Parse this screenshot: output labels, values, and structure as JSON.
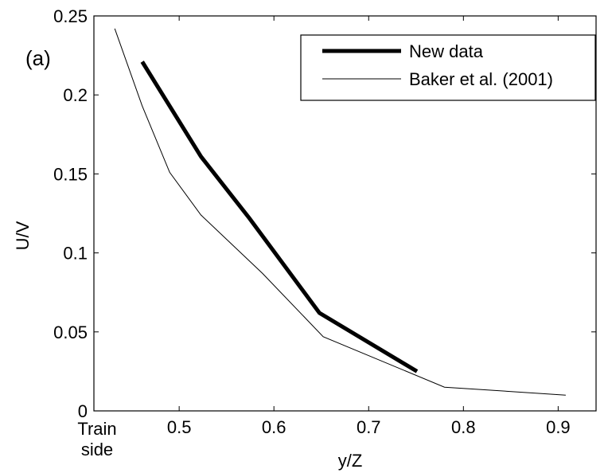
{
  "chart_data": {
    "type": "line",
    "title": "",
    "xlabel": "y/Z",
    "ylabel": "U/V",
    "xlim": [
      0.41,
      0.94
    ],
    "ylim": [
      0,
      0.25
    ],
    "xticks": [
      0.5,
      0.6,
      0.7,
      0.8,
      0.9
    ],
    "xtick_labels": [
      "0.5",
      "0.6",
      "0.7",
      "0.8",
      "0.9"
    ],
    "yticks": [
      0,
      0.05,
      0.1,
      0.15,
      0.2,
      0.25
    ],
    "ytick_labels": [
      "0",
      "0.05",
      "0.1",
      "0.15",
      "0.2",
      "0.25"
    ],
    "extra_xlabel": [
      "Train",
      "side"
    ],
    "annotation": "(a)",
    "grid": false,
    "legend_position": "top-right",
    "series": [
      {
        "name": "New data",
        "style": "thick",
        "color": "#000000",
        "x": [
          0.461,
          0.523,
          0.574,
          0.648,
          0.751
        ],
        "y": [
          0.221,
          0.161,
          0.122,
          0.062,
          0.025
        ]
      },
      {
        "name": "Baker et al. (2001)",
        "style": "thin",
        "color": "#000000",
        "x": [
          0.432,
          0.461,
          0.49,
          0.523,
          0.588,
          0.652,
          0.78,
          0.908
        ],
        "y": [
          0.242,
          0.193,
          0.151,
          0.124,
          0.087,
          0.047,
          0.015,
          0.01
        ]
      }
    ]
  }
}
